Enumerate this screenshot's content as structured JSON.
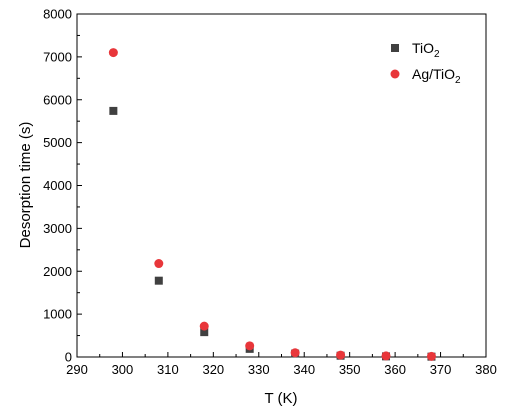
{
  "chart_data": {
    "type": "scatter",
    "xlabel": "T (K)",
    "ylabel": "Desorption time (s)",
    "xlim": [
      290,
      380
    ],
    "ylim": [
      0,
      8000
    ],
    "x_ticks": [
      "290",
      "300",
      "310",
      "320",
      "330",
      "340",
      "350",
      "360",
      "370",
      "380"
    ],
    "y_ticks": [
      "0",
      "1000",
      "2000",
      "3000",
      "4000",
      "5000",
      "6000",
      "7000",
      "8000"
    ],
    "legend_position": "top-right",
    "grid": false,
    "series": [
      {
        "name": "TiO",
        "name_subscript": "2",
        "marker": "square",
        "color": "#404040",
        "x": [
          298,
          308,
          318,
          328,
          338,
          348,
          358,
          368
        ],
        "y": [
          5740,
          1780,
          580,
          190,
          80,
          30,
          15,
          8
        ]
      },
      {
        "name": "Ag/TiO",
        "name_subscript": "2",
        "marker": "circle",
        "color": "#e8363a",
        "x": [
          298,
          308,
          318,
          328,
          338,
          348,
          358,
          368
        ],
        "y": [
          7100,
          2180,
          720,
          260,
          100,
          45,
          25,
          15
        ]
      }
    ]
  }
}
